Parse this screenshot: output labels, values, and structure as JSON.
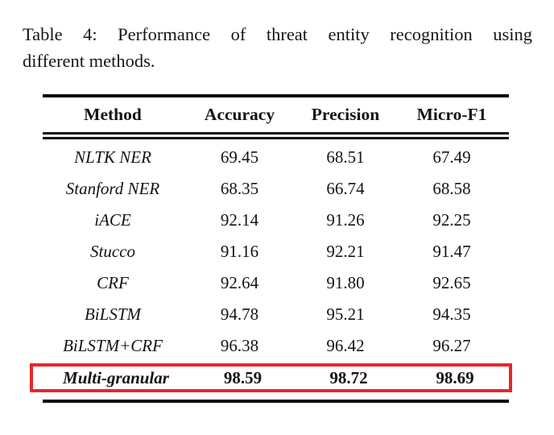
{
  "caption": {
    "line1": "Table 4: Performance of threat entity recognition using",
    "line2": "different methods."
  },
  "table": {
    "columns": [
      "Method",
      "Accuracy",
      "Precision",
      "Micro-F1"
    ],
    "rows": [
      {
        "method": "NLTK NER",
        "accuracy": "69.45",
        "precision": "68.51",
        "micro_f1": "67.49"
      },
      {
        "method": "Stanford NER",
        "accuracy": "68.35",
        "precision": "66.74",
        "micro_f1": "68.58"
      },
      {
        "method": "iACE",
        "accuracy": "92.14",
        "precision": "91.26",
        "micro_f1": "92.25"
      },
      {
        "method": "Stucco",
        "accuracy": "91.16",
        "precision": "92.21",
        "micro_f1": "91.47"
      },
      {
        "method": "CRF",
        "accuracy": "92.64",
        "precision": "91.80",
        "micro_f1": "92.65"
      },
      {
        "method": "BiLSTM",
        "accuracy": "94.78",
        "precision": "95.21",
        "micro_f1": "94.35"
      },
      {
        "method": "BiLSTM+CRF",
        "accuracy": "96.38",
        "precision": "96.42",
        "micro_f1": "96.27"
      }
    ],
    "highlighted_row": {
      "method": "Multi-granular",
      "accuracy": "98.59",
      "precision": "98.72",
      "micro_f1": "98.69"
    }
  },
  "colors": {
    "highlight_border": "#e8262b",
    "rule": "#0a0a0a",
    "text": "#141414",
    "background": "#ffffff"
  }
}
